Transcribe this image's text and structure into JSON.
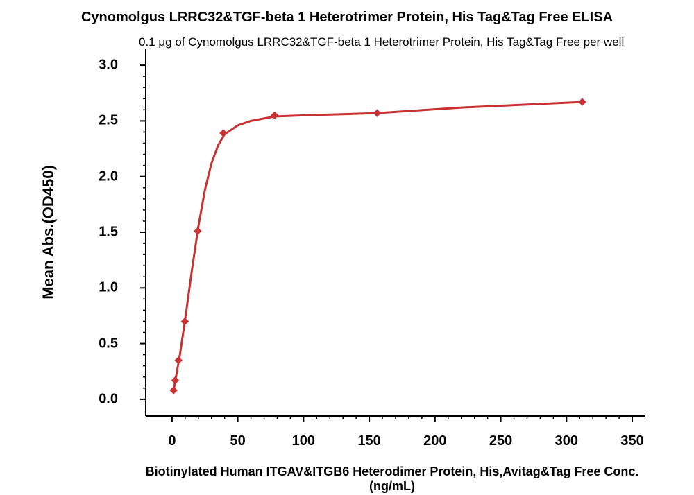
{
  "chart": {
    "type": "scatter-line",
    "title": "Cynomolgus LRRC32&TGF-beta 1 Heterotrimer Protein, His Tag&Tag Free ELISA",
    "subtitle": "0.1 μg of Cynomolgus LRRC32&TGF-beta 1 Heterotrimer Protein, His Tag&Tag Free per well",
    "title_fontsize": 20,
    "subtitle_fontsize": 17,
    "xlabel": "Biotinylated Human ITGAV&ITGB6 Heterodimer Protein, His,Avitag&Tag Free Conc. (ng/mL)",
    "ylabel": "Mean Abs.(OD450)",
    "label_fontsize": 22,
    "xlim": [
      -20,
      360
    ],
    "ylim": [
      -0.15,
      3.15
    ],
    "xticks": [
      0,
      50,
      100,
      150,
      200,
      250,
      300,
      350
    ],
    "yticks": [
      0.0,
      0.5,
      1.0,
      1.5,
      2.0,
      2.5,
      3.0
    ],
    "ytick_labels": [
      "0.0",
      "0.5",
      "1.0",
      "1.5",
      "2.0",
      "2.5",
      "3.0"
    ],
    "tick_fontsize": 20,
    "axis_color": "#000000",
    "axis_width": 2,
    "tick_length_major": 8,
    "tick_length_minor": 4,
    "background_color": "#ffffff",
    "line_color": "#c83232",
    "marker_color": "#c83232",
    "line_width": 3,
    "marker_size": 10,
    "marker_shape": "diamond",
    "data_points": [
      {
        "x": 1.2,
        "y": 0.08
      },
      {
        "x": 2.4,
        "y": 0.17
      },
      {
        "x": 4.9,
        "y": 0.35
      },
      {
        "x": 9.8,
        "y": 0.7
      },
      {
        "x": 19.5,
        "y": 1.51
      },
      {
        "x": 39,
        "y": 2.39
      },
      {
        "x": 78,
        "y": 2.55
      },
      {
        "x": 156,
        "y": 2.57
      },
      {
        "x": 312,
        "y": 2.67
      }
    ],
    "curve_points": [
      {
        "x": 1.2,
        "y": 0.08
      },
      {
        "x": 3,
        "y": 0.2
      },
      {
        "x": 6,
        "y": 0.4
      },
      {
        "x": 10,
        "y": 0.72
      },
      {
        "x": 15,
        "y": 1.15
      },
      {
        "x": 20,
        "y": 1.55
      },
      {
        "x": 25,
        "y": 1.88
      },
      {
        "x": 30,
        "y": 2.12
      },
      {
        "x": 35,
        "y": 2.28
      },
      {
        "x": 40,
        "y": 2.38
      },
      {
        "x": 50,
        "y": 2.46
      },
      {
        "x": 60,
        "y": 2.5
      },
      {
        "x": 78,
        "y": 2.54
      },
      {
        "x": 100,
        "y": 2.55
      },
      {
        "x": 156,
        "y": 2.57
      },
      {
        "x": 220,
        "y": 2.62
      },
      {
        "x": 312,
        "y": 2.67
      }
    ]
  }
}
